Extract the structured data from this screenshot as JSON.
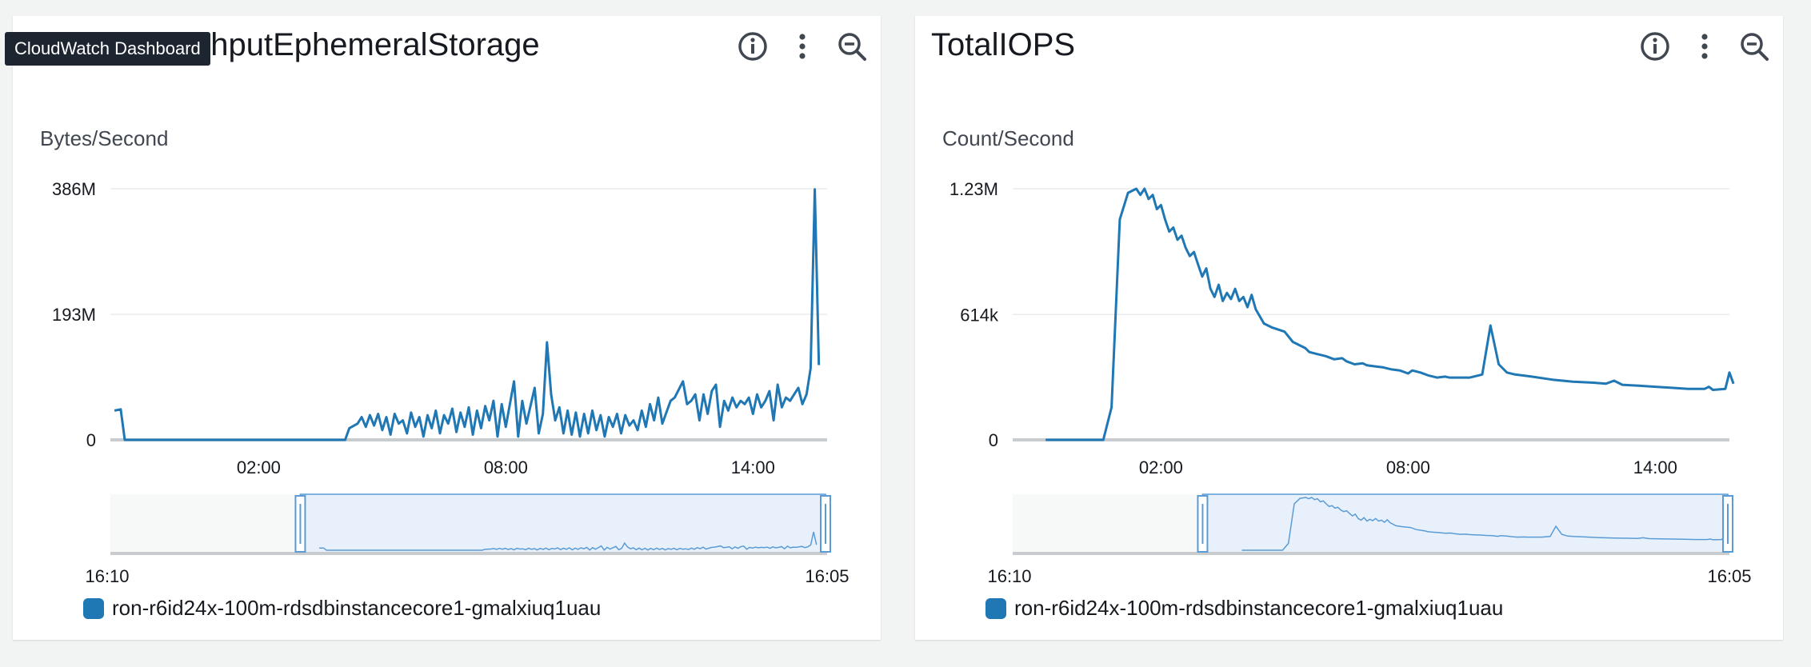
{
  "tooltip": "CloudWatch Dashboard",
  "colors": {
    "series": "#1f77b4",
    "grid": "#e9ebed",
    "axis": "#c9cccf",
    "brush": "#e8f1fb",
    "brushBorder": "#5b9bd5"
  },
  "panels": [
    {
      "title": "ghputEphemeralStorage",
      "legend": "ron-r6id24x-100m-rdsdbinstancecore1-gmalxiuq1uau",
      "brush_start_label": "16:10",
      "brush_end_label": "16:05"
    },
    {
      "title": "TotalIOPS",
      "legend": "ron-r6id24x-100m-rdsdbinstancecore1-gmalxiuq1uau",
      "brush_start_label": "16:10",
      "brush_end_label": "16:05"
    }
  ],
  "chart_data": [
    {
      "type": "line",
      "ylabel": "Bytes/Second",
      "ytick_labels": [
        "0",
        "193M",
        "386M"
      ],
      "ytick_values": [
        0,
        193,
        386
      ],
      "ylim": [
        0,
        386
      ],
      "y_unit": "M",
      "xtick_labels": [
        "02:00",
        "08:00",
        "14:00"
      ],
      "xtick_values": [
        2,
        8,
        14
      ],
      "xlim": [
        -1.6,
        15.8
      ],
      "x": [
        -1.4,
        -1.2,
        -1.0,
        -0.8,
        -0.6,
        -0.4,
        -0.2,
        0.0,
        0.2,
        0.4,
        0.6,
        0.8,
        1.0,
        1.2,
        1.4,
        1.6,
        1.8,
        2.0,
        2.2,
        2.4,
        2.6,
        2.8,
        3.0,
        3.2,
        3.4,
        3.6,
        3.8,
        4.0,
        4.2,
        4.4,
        4.6,
        4.8,
        5.0,
        5.2,
        5.4,
        5.6,
        5.8,
        6.0,
        6.2,
        6.4,
        6.6,
        6.8,
        7.0,
        7.2,
        7.4,
        7.6,
        7.8,
        8.0,
        8.2,
        8.4,
        8.6,
        8.8,
        9.0,
        9.2,
        9.4,
        9.6,
        9.8,
        10.0,
        10.2,
        10.4,
        10.6,
        10.8,
        11.0,
        11.2,
        11.4,
        11.6,
        11.8,
        12.0,
        12.2,
        12.4,
        12.6,
        12.8,
        13.0,
        13.2,
        13.4,
        13.6,
        13.8,
        14.0,
        14.2,
        14.4,
        14.6,
        14.8,
        15.0,
        15.2,
        15.4,
        15.5,
        15.6
      ],
      "series": [
        {
          "values": [
            44,
            46,
            0,
            0,
            0,
            0,
            0,
            0,
            0,
            0,
            0,
            0,
            0,
            0,
            0,
            0,
            0,
            0,
            0,
            0,
            0,
            0,
            0,
            0,
            0,
            0,
            0,
            0,
            0,
            0,
            0,
            0,
            0,
            0,
            0,
            0,
            0,
            0,
            0,
            0,
            0,
            0,
            0,
            0,
            0,
            0,
            0,
            0,
            0,
            0,
            0,
            0,
            0,
            0,
            0,
            0,
            0,
            0,
            0,
            0,
            0,
            0,
            0,
            0,
            0,
            0,
            0,
            0,
            0,
            0,
            0,
            0,
            0,
            0,
            0,
            0,
            0,
            0,
            0,
            0,
            0,
            0,
            0,
            0,
            0,
            0,
            0
          ],
          "hidden": true
        }
      ],
      "series_points": [
        [
          -1.5,
          45
        ],
        [
          -1.35,
          47
        ],
        [
          -1.25,
          0
        ],
        [
          2.1,
          0
        ],
        [
          4.1,
          0
        ],
        [
          4.2,
          18
        ],
        [
          4.4,
          25
        ],
        [
          4.5,
          35
        ],
        [
          4.6,
          20
        ],
        [
          4.7,
          38
        ],
        [
          4.8,
          22
        ],
        [
          4.9,
          40
        ],
        [
          5.0,
          15
        ],
        [
          5.1,
          35
        ],
        [
          5.2,
          8
        ],
        [
          5.3,
          40
        ],
        [
          5.4,
          25
        ],
        [
          5.5,
          30
        ],
        [
          5.6,
          10
        ],
        [
          5.7,
          42
        ],
        [
          5.8,
          20
        ],
        [
          5.9,
          35
        ],
        [
          6.0,
          5
        ],
        [
          6.1,
          38
        ],
        [
          6.2,
          18
        ],
        [
          6.3,
          45
        ],
        [
          6.4,
          10
        ],
        [
          6.5,
          38
        ],
        [
          6.6,
          25
        ],
        [
          6.7,
          48
        ],
        [
          6.8,
          12
        ],
        [
          6.9,
          42
        ],
        [
          7.0,
          20
        ],
        [
          7.1,
          50
        ],
        [
          7.2,
          8
        ],
        [
          7.3,
          45
        ],
        [
          7.4,
          18
        ],
        [
          7.5,
          52
        ],
        [
          7.6,
          30
        ],
        [
          7.7,
          60
        ],
        [
          7.8,
          5
        ],
        [
          7.9,
          55
        ],
        [
          8.0,
          20
        ],
        [
          8.2,
          90
        ],
        [
          8.3,
          5
        ],
        [
          8.4,
          60
        ],
        [
          8.5,
          25
        ],
        [
          8.7,
          80
        ],
        [
          8.8,
          10
        ],
        [
          8.9,
          40
        ],
        [
          9.0,
          150
        ],
        [
          9.1,
          70
        ],
        [
          9.2,
          30
        ],
        [
          9.3,
          50
        ],
        [
          9.4,
          10
        ],
        [
          9.5,
          45
        ],
        [
          9.6,
          8
        ],
        [
          9.7,
          42
        ],
        [
          9.8,
          5
        ],
        [
          9.9,
          40
        ],
        [
          10.0,
          10
        ],
        [
          10.1,
          45
        ],
        [
          10.2,
          15
        ],
        [
          10.3,
          38
        ],
        [
          10.4,
          5
        ],
        [
          10.5,
          35
        ],
        [
          10.6,
          20
        ],
        [
          10.7,
          40
        ],
        [
          10.8,
          10
        ],
        [
          10.9,
          38
        ],
        [
          11.0,
          22
        ],
        [
          11.1,
          30
        ],
        [
          11.2,
          15
        ],
        [
          11.3,
          45
        ],
        [
          11.4,
          20
        ],
        [
          11.5,
          55
        ],
        [
          11.6,
          30
        ],
        [
          11.7,
          65
        ],
        [
          11.8,
          25
        ],
        [
          12.0,
          60
        ],
        [
          12.1,
          65
        ],
        [
          12.3,
          90
        ],
        [
          12.4,
          55
        ],
        [
          12.5,
          60
        ],
        [
          12.6,
          70
        ],
        [
          12.7,
          30
        ],
        [
          12.8,
          70
        ],
        [
          12.9,
          40
        ],
        [
          13.0,
          75
        ],
        [
          13.1,
          85
        ],
        [
          13.2,
          20
        ],
        [
          13.3,
          60
        ],
        [
          13.4,
          45
        ],
        [
          13.5,
          65
        ],
        [
          13.6,
          50
        ],
        [
          13.7,
          60
        ],
        [
          13.8,
          55
        ],
        [
          13.9,
          65
        ],
        [
          14.0,
          40
        ],
        [
          14.1,
          70
        ],
        [
          14.2,
          50
        ],
        [
          14.3,
          60
        ],
        [
          14.4,
          75
        ],
        [
          14.5,
          30
        ],
        [
          14.6,
          85
        ],
        [
          14.7,
          50
        ],
        [
          14.8,
          65
        ],
        [
          14.9,
          60
        ],
        [
          15.0,
          70
        ],
        [
          15.1,
          80
        ],
        [
          15.2,
          55
        ],
        [
          15.3,
          70
        ],
        [
          15.4,
          110
        ],
        [
          15.5,
          385
        ],
        [
          15.6,
          115
        ]
      ]
    },
    {
      "type": "line",
      "ylabel": "Count/Second",
      "ytick_labels": [
        "0",
        "614k",
        "1.23M"
      ],
      "ytick_values": [
        0,
        614,
        1230
      ],
      "ylim": [
        0,
        1230
      ],
      "y_unit": "k",
      "xtick_labels": [
        "02:00",
        "08:00",
        "14:00"
      ],
      "xtick_values": [
        2,
        8,
        14
      ],
      "xlim": [
        -1.6,
        15.8
      ],
      "series_points": [
        [
          -0.8,
          0
        ],
        [
          0.6,
          0
        ],
        [
          0.8,
          160
        ],
        [
          1.0,
          1080
        ],
        [
          1.2,
          1210
        ],
        [
          1.4,
          1230
        ],
        [
          1.5,
          1200
        ],
        [
          1.6,
          1230
        ],
        [
          1.7,
          1180
        ],
        [
          1.8,
          1200
        ],
        [
          1.9,
          1130
        ],
        [
          2.0,
          1150
        ],
        [
          2.1,
          1080
        ],
        [
          2.2,
          1020
        ],
        [
          2.3,
          1040
        ],
        [
          2.4,
          980
        ],
        [
          2.5,
          1000
        ],
        [
          2.6,
          940
        ],
        [
          2.7,
          900
        ],
        [
          2.8,
          920
        ],
        [
          2.9,
          860
        ],
        [
          3.0,
          800
        ],
        [
          3.1,
          840
        ],
        [
          3.2,
          740
        ],
        [
          3.3,
          700
        ],
        [
          3.4,
          760
        ],
        [
          3.5,
          680
        ],
        [
          3.6,
          720
        ],
        [
          3.7,
          690
        ],
        [
          3.8,
          740
        ],
        [
          3.9,
          680
        ],
        [
          4.0,
          700
        ],
        [
          4.1,
          650
        ],
        [
          4.2,
          710
        ],
        [
          4.3,
          640
        ],
        [
          4.5,
          570
        ],
        [
          4.7,
          550
        ],
        [
          5.0,
          530
        ],
        [
          5.2,
          480
        ],
        [
          5.4,
          460
        ],
        [
          5.5,
          450
        ],
        [
          5.6,
          430
        ],
        [
          5.8,
          420
        ],
        [
          6.0,
          410
        ],
        [
          6.2,
          395
        ],
        [
          6.4,
          400
        ],
        [
          6.5,
          385
        ],
        [
          6.7,
          370
        ],
        [
          6.9,
          375
        ],
        [
          7.0,
          365
        ],
        [
          7.2,
          360
        ],
        [
          7.4,
          355
        ],
        [
          7.6,
          345
        ],
        [
          7.8,
          340
        ],
        [
          8.0,
          325
        ],
        [
          8.1,
          340
        ],
        [
          8.3,
          330
        ],
        [
          8.5,
          315
        ],
        [
          8.7,
          305
        ],
        [
          8.9,
          310
        ],
        [
          9.0,
          305
        ],
        [
          9.5,
          305
        ],
        [
          9.8,
          320
        ],
        [
          10.0,
          560
        ],
        [
          10.2,
          370
        ],
        [
          10.4,
          330
        ],
        [
          10.6,
          320
        ],
        [
          11.0,
          310
        ],
        [
          11.5,
          295
        ],
        [
          12.0,
          285
        ],
        [
          12.5,
          280
        ],
        [
          12.8,
          275
        ],
        [
          13.0,
          290
        ],
        [
          13.2,
          270
        ],
        [
          13.6,
          265
        ],
        [
          14.0,
          260
        ],
        [
          14.4,
          255
        ],
        [
          14.8,
          250
        ],
        [
          15.2,
          250
        ],
        [
          15.3,
          260
        ],
        [
          15.4,
          245
        ],
        [
          15.7,
          250
        ],
        [
          15.8,
          330
        ],
        [
          15.9,
          275
        ]
      ]
    }
  ]
}
